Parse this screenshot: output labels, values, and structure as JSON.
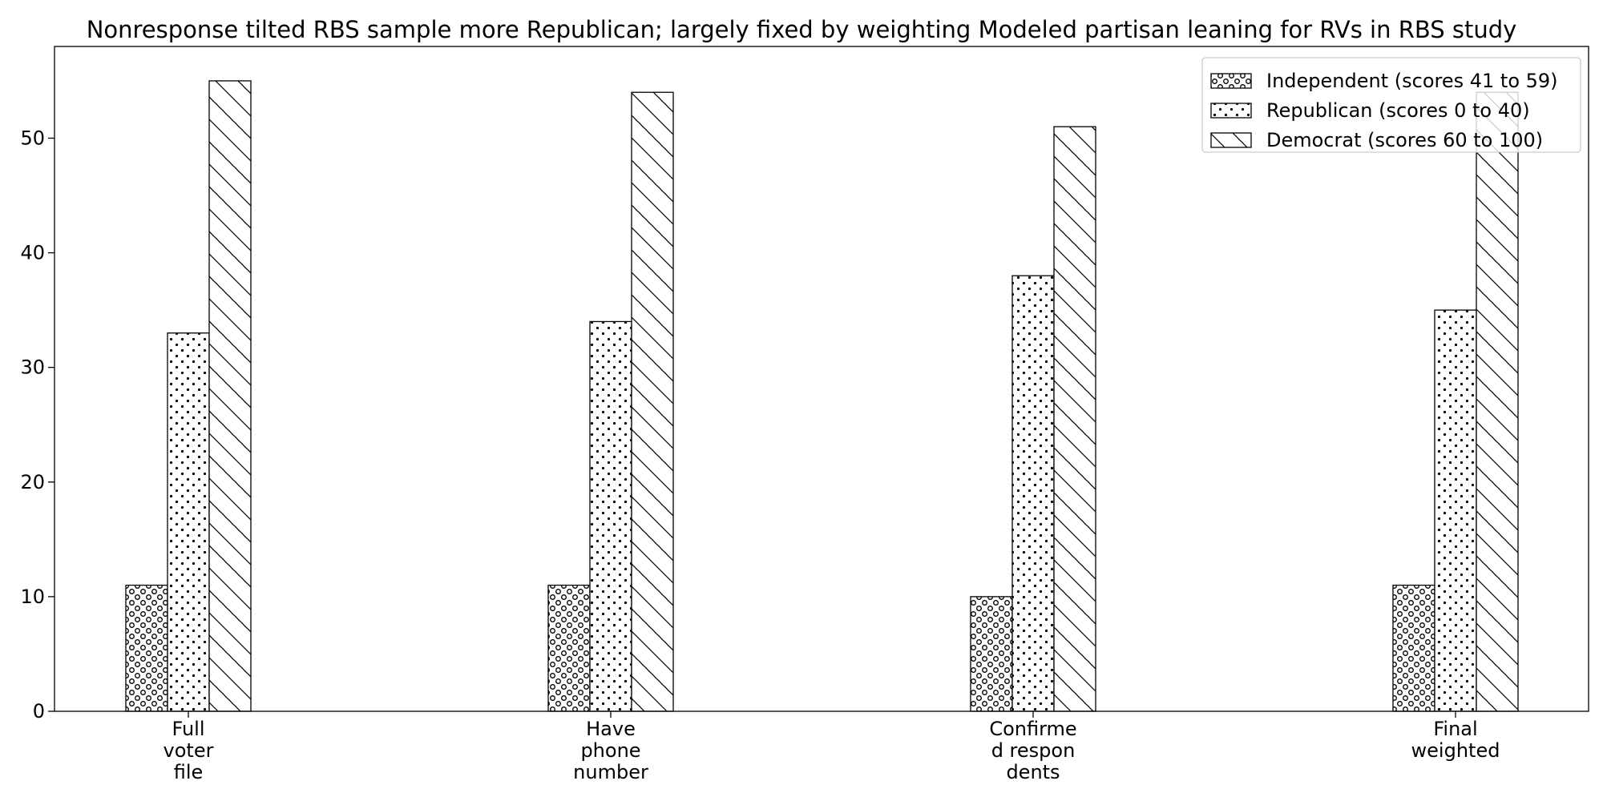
{
  "chart_data": {
    "type": "bar",
    "title": "Nonresponse tilted RBS sample more Republican; largely fixed by weighting Modeled partisan leaning for RVs in RBS study",
    "xlabel": "",
    "ylabel": "",
    "categories": [
      [
        "Full",
        "voter",
        "file"
      ],
      [
        "Have",
        "phone",
        "number"
      ],
      [
        "Confirme",
        "d respon",
        "dents"
      ],
      [
        "Final",
        "weighted"
      ]
    ],
    "series": [
      {
        "name": "Independent (scores 41 to 59)",
        "pattern": "circles",
        "values": [
          11,
          11,
          10,
          11
        ]
      },
      {
        "name": "Republican (scores 0 to 40)",
        "pattern": "dots",
        "values": [
          33,
          34,
          38,
          35
        ]
      },
      {
        "name": "Democrat (scores 60 to 100)",
        "pattern": "diagonal",
        "values": [
          55,
          54,
          51,
          54
        ]
      }
    ],
    "ylim": [
      0,
      58
    ],
    "yticks": [
      0,
      10,
      20,
      30,
      40,
      50
    ],
    "grid": false,
    "legend_position": "top-right",
    "colors": {
      "bar_fill": "#ffffff",
      "bar_edge": "#000000",
      "hatch": "#000000"
    }
  }
}
